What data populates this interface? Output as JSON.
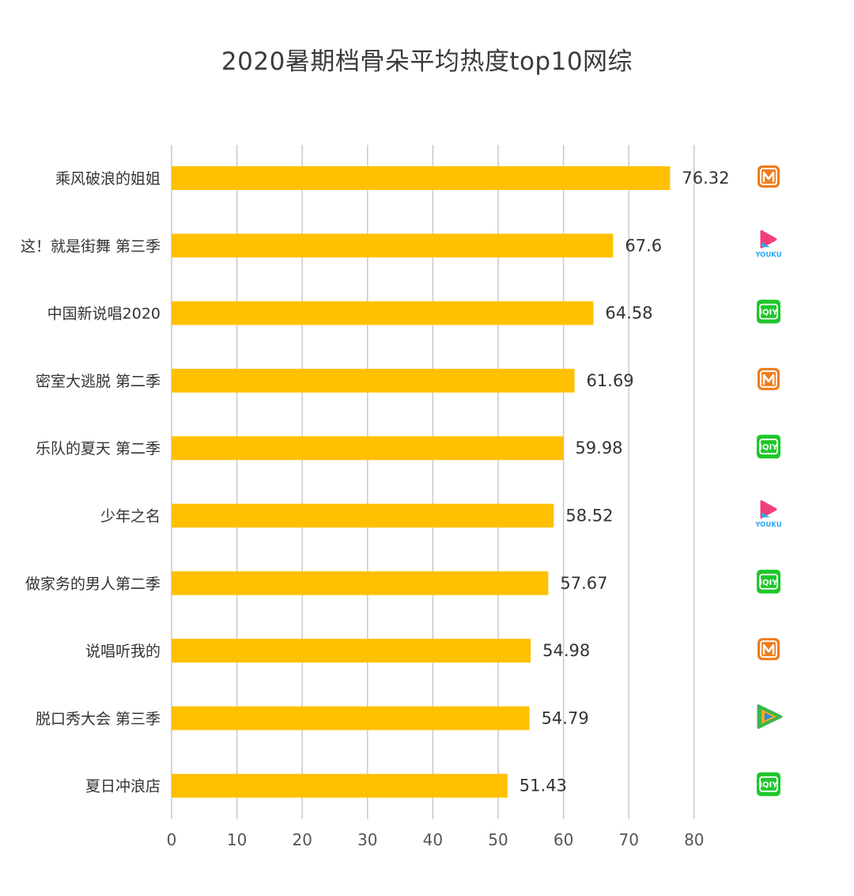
{
  "colors": {
    "bar": "#FFC000",
    "grid": "#c9c9c9",
    "mango": "#F07C1B",
    "iqiyi": "#1EC72A",
    "youku_pink": "#F2407A",
    "youku_blue": "#2AA9F2",
    "tencent_green": "#3BB54A",
    "tencent_orange": "#F6A623",
    "tencent_blue": "#1D8FE8"
  },
  "chart_data": {
    "type": "bar",
    "orientation": "horizontal",
    "title": "2020暑期档骨朵平均热度top10网综",
    "categories": [
      "乘风破浪的姐姐",
      "这！就是街舞 第三季",
      "中国新说唱2020",
      "密室大逃脱 第二季",
      "乐队的夏天 第二季",
      "少年之名",
      "做家务的男人第二季",
      "说唱听我的",
      "脱口秀大会 第三季",
      "夏日冲浪店"
    ],
    "values": [
      76.32,
      67.6,
      64.58,
      61.69,
      59.98,
      58.52,
      57.67,
      54.98,
      54.79,
      51.43
    ],
    "value_labels": [
      "76.32",
      "67.6",
      "64.58",
      "61.69",
      "59.98",
      "58.52",
      "57.67",
      "54.98",
      "54.79",
      "51.43"
    ],
    "platform_icons": [
      "mango-tv-icon",
      "youku-icon",
      "iqiyi-icon",
      "mango-tv-icon",
      "iqiyi-icon",
      "youku-icon",
      "iqiyi-icon",
      "mango-tv-icon",
      "tencent-video-icon",
      "iqiyi-icon"
    ],
    "xlim": [
      0,
      80
    ],
    "xticks": [
      0,
      10,
      20,
      30,
      40,
      50,
      60,
      70,
      80
    ],
    "xlabel": "",
    "ylabel": "",
    "grid": true,
    "legend": "none"
  },
  "logos": {
    "youku_text": "YOUKU",
    "iqiyi_text": "iQIY"
  }
}
